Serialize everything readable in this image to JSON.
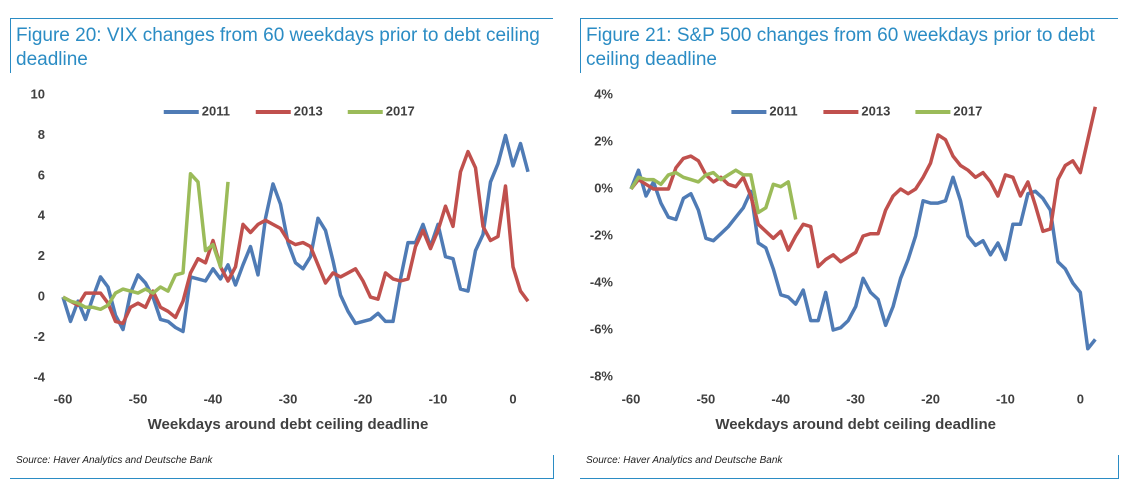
{
  "chart_data": [
    {
      "type": "line",
      "title": "Figure 20: VIX changes from 60 weekdays prior to debt ceiling deadline",
      "xlabel": "Weekdays around debt ceiling deadline",
      "source": "Source: Haver Analytics and Deutsche Bank",
      "x": [
        -60,
        -59,
        -58,
        -57,
        -56,
        -55,
        -54,
        -53,
        -52,
        -51,
        -50,
        -49,
        -48,
        -47,
        -46,
        -45,
        -44,
        -43,
        -42,
        -41,
        -40,
        -39,
        -38,
        -37,
        -36,
        -35,
        -34,
        -33,
        -32,
        -31,
        -30,
        -29,
        -28,
        -27,
        -26,
        -25,
        -24,
        -23,
        -22,
        -21,
        -20,
        -19,
        -18,
        -17,
        -16,
        -15,
        -14,
        -13,
        -12,
        -11,
        -10,
        -9,
        -8,
        -7,
        -6,
        -5,
        -4,
        -3,
        -2,
        -1,
        0,
        1,
        2
      ],
      "xlim": [
        -61,
        2
      ],
      "xticks": [
        -60,
        -50,
        -40,
        -30,
        -20,
        -10,
        0
      ],
      "ylim": [
        -4,
        10
      ],
      "yticks": [
        -4,
        -2,
        0,
        2,
        4,
        6,
        8,
        10
      ],
      "series": [
        {
          "name": "2011",
          "color": "#4f7bb5",
          "values": [
            0,
            -1.2,
            -0.2,
            -1.1,
            0,
            1.0,
            0.5,
            -0.9,
            -1.6,
            0.2,
            1.1,
            0.7,
            0,
            -1.1,
            -1.2,
            -1.5,
            -1.7,
            1.0,
            0.9,
            0.8,
            1.4,
            0.9,
            1.6,
            0.6,
            1.6,
            2.5,
            1.1,
            3.9,
            5.6,
            4.6,
            2.7,
            1.7,
            1.4,
            2.0,
            3.9,
            3.3,
            1.8,
            0.1,
            -0.7,
            -1.3,
            -1.2,
            -1.1,
            -0.8,
            -1.2,
            -1.2,
            0.9,
            2.7,
            2.7,
            3.6,
            2.5,
            3.6,
            2.0,
            1.9,
            0.4,
            0.3,
            2.3,
            3.1,
            5.7,
            6.6,
            8.0,
            6.5,
            7.6,
            6.2
          ]
        },
        {
          "name": "2013",
          "color": "#c0504d",
          "values": [
            0,
            -0.2,
            -0.4,
            0.2,
            0.2,
            0.2,
            -0.3,
            -1.2,
            -1.3,
            -0.5,
            -0.3,
            -0.5,
            0.3,
            -0.5,
            -0.7,
            -1.0,
            -0.2,
            1.2,
            1.9,
            1.7,
            2.8,
            1.5,
            0.8,
            1.5,
            3.6,
            3.2,
            3.6,
            3.8,
            3.6,
            3.4,
            2.8,
            2.6,
            2.7,
            2.5,
            1.6,
            0.7,
            1.2,
            1.0,
            1.2,
            1.4,
            0.8,
            0.0,
            -0.1,
            1.2,
            0.9,
            0.8,
            0.9,
            2.5,
            3.3,
            2.4,
            3.3,
            4.5,
            3.5,
            6.2,
            7.2,
            6.4,
            3.5,
            2.8,
            3.0,
            5.5,
            1.5,
            0.3,
            -0.2
          ]
        },
        {
          "name": "2017",
          "color": "#9bbb59",
          "values": [
            0,
            -0.2,
            -0.3,
            -0.5,
            -0.5,
            -0.6,
            -0.4,
            0.2,
            0.4,
            0.3,
            0.2,
            0.4,
            0.2,
            0.5,
            0.3,
            1.1,
            1.2,
            6.1,
            5.7,
            2.3,
            2.6,
            1.5,
            5.7,
            null,
            null,
            null,
            null,
            null,
            null,
            null,
            null,
            null,
            null,
            null,
            null,
            null,
            null,
            null,
            null,
            null,
            null,
            null,
            null,
            null,
            null,
            null,
            null,
            null,
            null,
            null,
            null,
            null,
            null,
            null,
            null,
            null,
            null,
            null,
            null,
            null,
            null,
            null,
            null
          ]
        }
      ]
    },
    {
      "type": "line",
      "title": "Figure 21: S&P 500 changes from 60 weekdays prior to debt ceiling deadline",
      "xlabel": "Weekdays around debt ceiling deadline",
      "source": "Source: Haver Analytics and Deutsche Bank",
      "x": [
        -60,
        -59,
        -58,
        -57,
        -56,
        -55,
        -54,
        -53,
        -52,
        -51,
        -50,
        -49,
        -48,
        -47,
        -46,
        -45,
        -44,
        -43,
        -42,
        -41,
        -40,
        -39,
        -38,
        -37,
        -36,
        -35,
        -34,
        -33,
        -32,
        -31,
        -30,
        -29,
        -28,
        -27,
        -26,
        -25,
        -24,
        -23,
        -22,
        -21,
        -20,
        -19,
        -18,
        -17,
        -16,
        -15,
        -14,
        -13,
        -12,
        -11,
        -10,
        -9,
        -8,
        -7,
        -6,
        -5,
        -4,
        -3,
        -2,
        -1,
        0,
        1,
        2
      ],
      "xlim": [
        -61,
        2
      ],
      "xticks": [
        -60,
        -50,
        -40,
        -30,
        -20,
        -10,
        0
      ],
      "ylim": [
        -8,
        4
      ],
      "yticks": [
        {
          "value": -8,
          "label": "-8%"
        },
        {
          "value": -6,
          "label": "-6%"
        },
        {
          "value": -4,
          "label": "-4%"
        },
        {
          "value": -2,
          "label": "-2%"
        },
        {
          "value": 0,
          "label": "0%"
        },
        {
          "value": 2,
          "label": "2%"
        },
        {
          "value": 4,
          "label": "4%"
        }
      ],
      "series": [
        {
          "name": "2011",
          "color": "#4f7bb5",
          "values": [
            0,
            0.8,
            -0.3,
            0.3,
            -0.6,
            -1.2,
            -1.3,
            -0.4,
            -0.2,
            -0.9,
            -2.1,
            -2.2,
            -1.9,
            -1.6,
            -1.2,
            -0.8,
            -0.1,
            -2.3,
            -2.5,
            -3.4,
            -4.5,
            -4.6,
            -4.9,
            -4.3,
            -5.6,
            -5.6,
            -4.4,
            -6.0,
            -5.9,
            -5.6,
            -5.0,
            -3.8,
            -4.4,
            -4.7,
            -5.8,
            -5.0,
            -3.8,
            -3.0,
            -2.0,
            -0.5,
            -0.6,
            -0.6,
            -0.5,
            0.5,
            -0.5,
            -2.0,
            -2.4,
            -2.2,
            -2.8,
            -2.3,
            -3.0,
            -1.5,
            -1.5,
            -0.2,
            -0.1,
            -0.4,
            -0.9,
            -3.1,
            -3.4,
            -4.0,
            -4.4,
            -6.8,
            -6.4
          ]
        },
        {
          "name": "2013",
          "color": "#c0504d",
          "values": [
            0,
            0.4,
            0.2,
            0.0,
            0.0,
            0.0,
            0.9,
            1.3,
            1.4,
            1.2,
            0.6,
            0.3,
            0.5,
            0.2,
            0.1,
            0.5,
            -0.3,
            -1.5,
            -1.8,
            -2.1,
            -1.8,
            -2.6,
            -2.0,
            -1.5,
            -1.6,
            -3.3,
            -3.0,
            -2.8,
            -3.1,
            -2.9,
            -2.7,
            -2.0,
            -1.9,
            -1.9,
            -0.9,
            -0.3,
            0.0,
            -0.2,
            0.0,
            0.5,
            1.1,
            2.3,
            2.1,
            1.4,
            1.0,
            0.8,
            0.5,
            0.7,
            0.3,
            -0.3,
            0.6,
            0.5,
            -0.3,
            0.3,
            -0.7,
            -1.8,
            -1.7,
            0.4,
            1.0,
            1.2,
            0.7,
            2.1,
            3.5
          ]
        },
        {
          "name": "2017",
          "color": "#9bbb59",
          "values": [
            0,
            0.5,
            0.4,
            0.4,
            0.2,
            0.6,
            0.7,
            0.5,
            0.4,
            0.3,
            0.6,
            0.7,
            0.4,
            0.6,
            0.8,
            0.6,
            0.6,
            -1.0,
            -0.8,
            0.2,
            0.1,
            0.3,
            -1.3,
            null,
            null,
            null,
            null,
            null,
            null,
            null,
            null,
            null,
            null,
            null,
            null,
            null,
            null,
            null,
            null,
            null,
            null,
            null,
            null,
            null,
            null,
            null,
            null,
            null,
            null,
            null,
            null,
            null,
            null,
            null,
            null,
            null,
            null,
            null,
            null,
            null,
            null,
            null,
            null
          ]
        }
      ]
    }
  ]
}
